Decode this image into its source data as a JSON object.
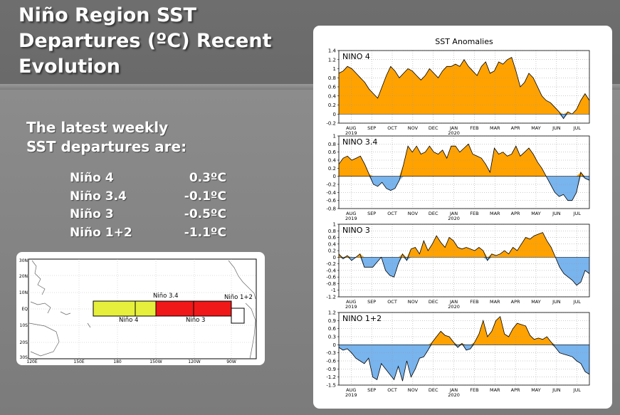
{
  "slide": {
    "title_lines": [
      "Niño Region SST",
      "Departures (ºC) Recent",
      "Evolution"
    ],
    "intro_lines": [
      "The latest weekly",
      "SST departures are:"
    ],
    "values": [
      {
        "region": "Niño 4",
        "value": "0.3ºC"
      },
      {
        "region": "Niño 3.4",
        "value": "-0.1ºC"
      },
      {
        "region": "Niño 3",
        "value": "-0.5ºC"
      },
      {
        "region": "Niño 1+2",
        "value": "-1.1ºC"
      }
    ]
  },
  "map": {
    "lat_labels": [
      "30N",
      "20N",
      "10N",
      "EQ",
      "10S",
      "20S",
      "30S"
    ],
    "lon_labels": [
      "120E",
      "150E",
      "180",
      "150W",
      "120W",
      "90W"
    ],
    "regions": [
      {
        "name": "Niño 4",
        "color": "#e6f03c"
      },
      {
        "name": "Niño 3.4",
        "color": "#f01818"
      },
      {
        "name": "Niño 3",
        "color": "#f01818"
      },
      {
        "name": "Niño 1+2",
        "color": "#ffffff"
      }
    ]
  },
  "colors": {
    "positive": "#ffa200",
    "negative": "#78b4ee"
  },
  "chart_data": {
    "type": "area",
    "title": "SST Anomalies",
    "x_ticks": [
      "AUG",
      "SEP",
      "OCT",
      "NOV",
      "DEC",
      "JAN",
      "FEB",
      "MAR",
      "APR",
      "MAY",
      "JUN",
      "JUL"
    ],
    "x_year_labels": [
      {
        "month": "AUG",
        "year": "2019"
      },
      {
        "month": "JAN",
        "year": "2020"
      }
    ],
    "grid": true,
    "panels": [
      {
        "name": "NINO 4",
        "ylim": [
          -0.2,
          1.4
        ],
        "yticks": [
          "1.4",
          "1.2",
          "1",
          "0.8",
          "0.6",
          "0.4",
          "0.2",
          "0",
          "-0.2"
        ],
        "values": [
          0.9,
          0.95,
          1.05,
          1.0,
          0.9,
          0.8,
          0.7,
          0.55,
          0.45,
          0.35,
          0.6,
          0.85,
          1.05,
          0.95,
          0.8,
          0.9,
          1.0,
          0.95,
          0.85,
          0.75,
          0.85,
          1.0,
          0.9,
          0.8,
          0.95,
          1.05,
          1.05,
          1.1,
          1.05,
          1.2,
          1.05,
          0.95,
          0.85,
          1.05,
          1.15,
          0.9,
          0.95,
          1.15,
          1.1,
          1.2,
          1.25,
          0.95,
          0.6,
          0.7,
          0.9,
          0.8,
          0.6,
          0.4,
          0.3,
          0.25,
          0.15,
          0.05,
          -0.1,
          0.05,
          0.0,
          0.1,
          0.3,
          0.45,
          0.3
        ]
      },
      {
        "name": "NINO 3.4",
        "ylim": [
          -0.8,
          1.0
        ],
        "yticks": [
          "1",
          "0.8",
          "0.6",
          "0.4",
          "0.2",
          "0",
          "-0.2",
          "-0.4",
          "-0.6",
          "-0.8"
        ],
        "values": [
          0.3,
          0.45,
          0.5,
          0.4,
          0.45,
          0.5,
          0.3,
          0.05,
          -0.2,
          -0.25,
          -0.15,
          -0.3,
          -0.35,
          -0.3,
          -0.1,
          0.3,
          0.75,
          0.6,
          0.75,
          0.55,
          0.6,
          0.75,
          0.6,
          0.55,
          0.65,
          0.45,
          0.75,
          0.75,
          0.6,
          0.7,
          0.8,
          0.55,
          0.5,
          0.45,
          0.3,
          0.1,
          0.7,
          0.55,
          0.6,
          0.5,
          0.55,
          0.75,
          0.5,
          0.6,
          0.7,
          0.55,
          0.35,
          0.2,
          0.0,
          -0.2,
          -0.4,
          -0.5,
          -0.45,
          -0.6,
          -0.6,
          -0.4,
          0.1,
          -0.05,
          -0.1
        ]
      },
      {
        "name": "NINO 3",
        "ylim": [
          -1.2,
          1.0
        ],
        "yticks": [
          "1",
          "0.8",
          "0.6",
          "0.4",
          "0.2",
          "0",
          "-0.2",
          "-0.4",
          "-0.6",
          "-0.8",
          "-1",
          "-1.2"
        ],
        "values": [
          0.1,
          -0.05,
          0.05,
          -0.1,
          0.0,
          0.1,
          -0.3,
          -0.3,
          -0.3,
          -0.15,
          0.0,
          -0.4,
          -0.55,
          -0.6,
          -0.2,
          0.1,
          -0.1,
          0.25,
          0.3,
          0.1,
          0.5,
          0.2,
          0.4,
          0.65,
          0.45,
          0.3,
          0.6,
          0.5,
          0.3,
          0.25,
          0.3,
          0.25,
          0.2,
          0.3,
          0.2,
          -0.1,
          0.1,
          0.05,
          0.1,
          0.2,
          0.1,
          0.3,
          0.2,
          0.4,
          0.6,
          0.55,
          0.65,
          0.7,
          0.75,
          0.5,
          0.3,
          0.0,
          -0.3,
          -0.5,
          -0.6,
          -0.7,
          -0.85,
          -0.75,
          -0.4,
          -0.5
        ]
      },
      {
        "name": "NINO 1+2",
        "ylim": [
          -1.5,
          1.2
        ],
        "yticks": [
          "1.2",
          "0.9",
          "0.6",
          "0.3",
          "0",
          "-0.3",
          "-0.6",
          "-0.9",
          "-1.2",
          "-1.5"
        ],
        "values": [
          -0.1,
          -0.2,
          -0.15,
          -0.3,
          -0.5,
          -0.6,
          -0.7,
          -0.5,
          -1.2,
          -1.3,
          -0.7,
          -0.9,
          -1.1,
          -1.3,
          -0.8,
          -1.35,
          -0.6,
          -1.2,
          -0.9,
          -0.5,
          -0.45,
          -0.2,
          0.1,
          0.3,
          0.5,
          0.35,
          0.3,
          0.1,
          -0.1,
          0.05,
          -0.2,
          -0.15,
          0.1,
          0.4,
          0.9,
          0.3,
          0.5,
          0.9,
          1.05,
          0.4,
          0.3,
          0.6,
          0.8,
          0.75,
          0.7,
          0.35,
          0.2,
          0.25,
          0.2,
          0.3,
          0.1,
          -0.1,
          -0.3,
          -0.35,
          -0.4,
          -0.45,
          -0.6,
          -0.7,
          -1.0,
          -1.1
        ]
      }
    ]
  }
}
